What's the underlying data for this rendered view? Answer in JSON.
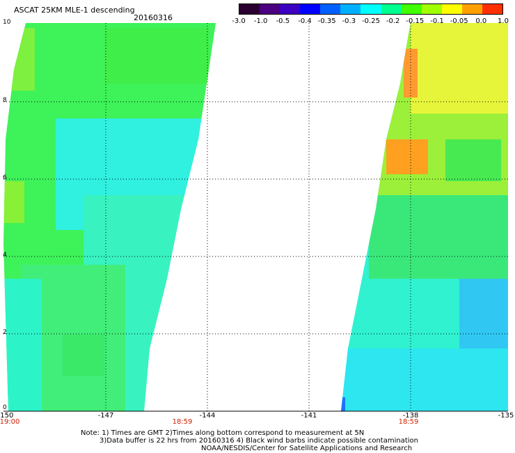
{
  "header": {
    "title": "ASCAT 25KM MLE-1 descending",
    "date": "20160316"
  },
  "colorbar": {
    "labels": [
      "-3.0",
      "-1.0",
      "-0.5",
      "-0.4",
      "-0.35",
      "-0.3",
      "-0.25",
      "-0.2",
      "-0.15",
      "-0.1",
      "-0.05",
      "0.0",
      "1.0"
    ],
    "colors": [
      "#2a0030",
      "#4a0080",
      "#3c00c0",
      "#0000ff",
      "#0060ff",
      "#00b0ff",
      "#00ffff",
      "#00ff90",
      "#40ff00",
      "#a0ff00",
      "#ffff00",
      "#ffa000",
      "#ff3000"
    ]
  },
  "axes": {
    "y_ticks": [
      "10",
      "8",
      "6",
      "4",
      "2",
      "0"
    ],
    "x_ticks": [
      "-150",
      "-147",
      "-144",
      "-141",
      "-138",
      "-135"
    ]
  },
  "swath_times": {
    "left": "19:00",
    "center_left": "18:59",
    "right": "18:59"
  },
  "notes": {
    "line1": "Note: 1) Times are GMT 2)Times along bottom correspond to measurement at 5N",
    "line2": "3)Data buffer is 22 hrs from 20160316 4) Black wind barbs indicate possible contamination",
    "line3": "NOAA/NESDIS/Center for Satellite Applications and Research"
  },
  "map_data": {
    "lon_range": [
      -150,
      -135
    ],
    "lat_range": [
      0,
      10
    ]
  }
}
